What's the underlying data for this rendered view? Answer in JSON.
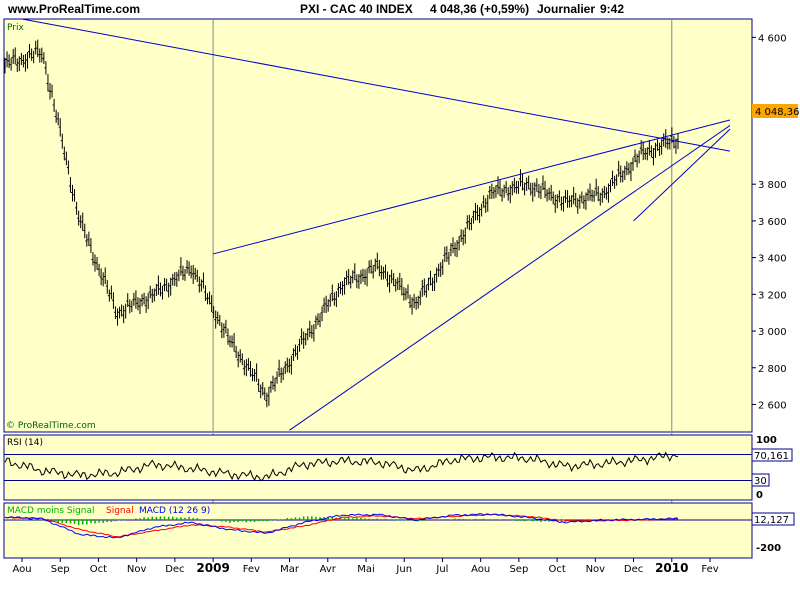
{
  "header": {
    "site": "www.ProRealTime.com",
    "ticker": "PXI - CAC 40 INDEX",
    "last_price_change": "4 048,36 (+0,59%)",
    "period": "Journalier",
    "time": "9:42"
  },
  "price_panel": {
    "label": "Prix",
    "watermark": "© ProRealTime.com",
    "current_label": "4 048,36",
    "y_ticks": [
      "4 600",
      "4 200",
      "3 800",
      "3 600",
      "3 400",
      "3 200",
      "3 000",
      "2 800",
      "2 600"
    ]
  },
  "rsi_panel": {
    "label": "RSI (14)",
    "current_label": "70,161",
    "y_ticks": [
      "100",
      "30",
      "0"
    ]
  },
  "macd_panel": {
    "label_hist": "MACD moins Signal",
    "label_signal": "Signal",
    "label_macd": "MACD (12 26 9)",
    "current_label": "12,127",
    "y_ticks": [
      "-200"
    ]
  },
  "x_axis": {
    "labels": [
      "Aou",
      "Sep",
      "Oct",
      "Nov",
      "Dec",
      "2009",
      "Fev",
      "Mar",
      "Avr",
      "Mai",
      "Jun",
      "Jul",
      "Aou",
      "Sep",
      "Oct",
      "Nov",
      "Dec",
      "2010",
      "Fev"
    ]
  },
  "colors": {
    "background": "#ffffc8",
    "trendline": "#0000cc",
    "price_tag": "#ffa500",
    "macd_hist": "#00b000",
    "macd_signal": "#ff0000",
    "macd_line": "#0000ff",
    "separator": "#00008b"
  },
  "chart_data": [
    {
      "type": "candlestick",
      "title": "PXI - CAC 40 INDEX",
      "ylabel": "Prix",
      "ylim": [
        2450,
        4700
      ],
      "x": [
        "Aou",
        "Sep",
        "Oct",
        "Nov",
        "Dec",
        "2009",
        "Fev",
        "Mar",
        "Avr",
        "Mai",
        "Jun",
        "Jul",
        "Aou",
        "Sep",
        "Oct",
        "Nov",
        "Dec",
        "2010",
        "Fev"
      ],
      "values": [
        4450,
        4520,
        3600,
        3100,
        3200,
        3350,
        2950,
        2650,
        2950,
        3250,
        3350,
        3150,
        3450,
        3750,
        3800,
        3700,
        3750,
        3960,
        4048.36
      ],
      "trendlines": [
        {
          "from": [
            0,
            4700
          ],
          "to": [
            18,
            3980
          ]
        },
        {
          "from": [
            5,
            3420
          ],
          "to": [
            18,
            4150
          ]
        },
        {
          "from": [
            7,
            2460
          ],
          "to": [
            18,
            4120
          ]
        },
        {
          "from": [
            16,
            3600
          ],
          "to": [
            18,
            4100
          ]
        }
      ],
      "annotations": [
        "4 048,36"
      ]
    },
    {
      "type": "line",
      "title": "RSI (14)",
      "ylim": [
        0,
        100
      ],
      "reference_lines": [
        70,
        30
      ],
      "values": [
        60,
        45,
        38,
        42,
        55,
        48,
        40,
        35,
        55,
        60,
        58,
        45,
        62,
        66,
        64,
        52,
        56,
        62,
        70.161
      ],
      "annotations": [
        "70,161"
      ]
    },
    {
      "type": "line",
      "title": "MACD (12 26 9)",
      "series": [
        {
          "name": "MACD",
          "values": [
            25,
            10,
            -120,
            -150,
            -60,
            -20,
            -80,
            -110,
            -20,
            40,
            45,
            0,
            40,
            50,
            20,
            -20,
            0,
            5,
            12.127
          ]
        },
        {
          "name": "Signal",
          "values": [
            20,
            15,
            -80,
            -140,
            -90,
            -40,
            -60,
            -100,
            -50,
            20,
            35,
            10,
            30,
            45,
            30,
            -5,
            -5,
            0,
            10
          ]
        },
        {
          "name": "MACD moins Signal",
          "values": [
            5,
            -5,
            -40,
            -10,
            30,
            20,
            -20,
            -10,
            30,
            20,
            10,
            -10,
            10,
            5,
            -10,
            -15,
            5,
            5,
            2
          ]
        }
      ],
      "annotations": [
        "12,127"
      ]
    }
  ]
}
